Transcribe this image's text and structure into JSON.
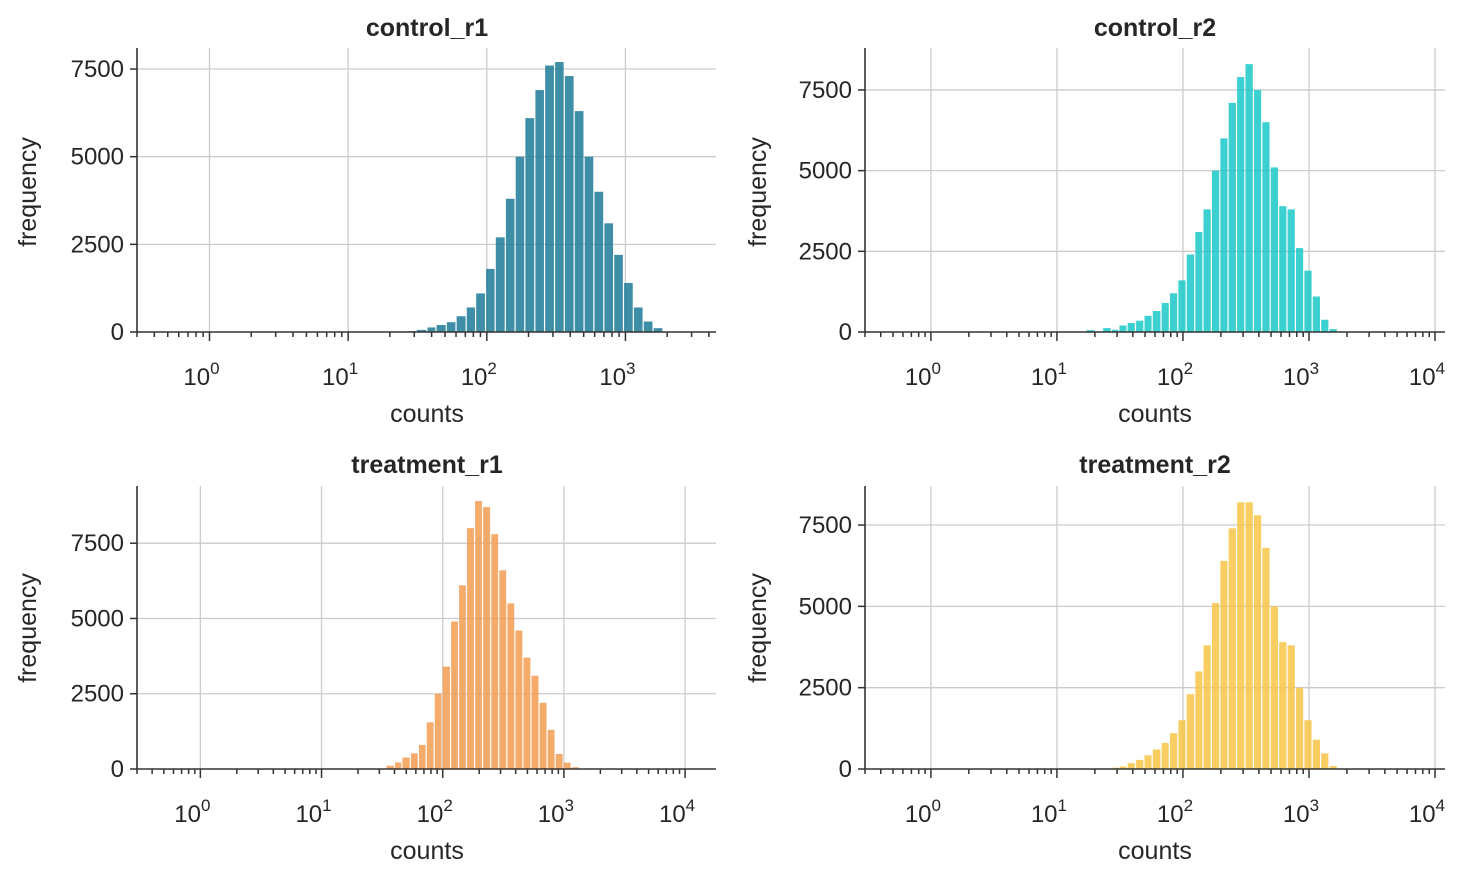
{
  "chart_data": [
    {
      "type": "bar",
      "title": "control_r1",
      "xlabel": "counts",
      "ylabel": "frequency",
      "xscale": "log",
      "xlim": [
        0.3,
        4500
      ],
      "ylim": [
        0,
        8100
      ],
      "grid": true,
      "color": "#1c7a98",
      "xtick_labels": [
        "10^0",
        "10^1",
        "10^2",
        "10^3"
      ],
      "ytick_labels": [
        "0",
        "2500",
        "5000",
        "7500"
      ],
      "yticks": [
        0,
        2500,
        5000,
        7500
      ],
      "bins": [
        [
          27,
          31,
          25
        ],
        [
          31,
          37,
          60
        ],
        [
          37,
          43,
          130
        ],
        [
          43,
          51,
          200
        ],
        [
          51,
          60,
          280
        ],
        [
          60,
          71,
          450
        ],
        [
          71,
          83,
          700
        ],
        [
          83,
          98,
          1100
        ],
        [
          98,
          115,
          1800
        ],
        [
          115,
          136,
          2700
        ],
        [
          136,
          160,
          3800
        ],
        [
          160,
          188,
          5000
        ],
        [
          188,
          222,
          6100
        ],
        [
          222,
          261,
          6900
        ],
        [
          261,
          308,
          7600
        ],
        [
          308,
          362,
          7700
        ],
        [
          362,
          427,
          7300
        ],
        [
          427,
          503,
          6300
        ],
        [
          503,
          592,
          5000
        ],
        [
          592,
          698,
          4000
        ],
        [
          698,
          822,
          3100
        ],
        [
          822,
          968,
          2200
        ],
        [
          968,
          1140,
          1400
        ],
        [
          1140,
          1343,
          700
        ],
        [
          1343,
          1582,
          300
        ],
        [
          1582,
          1863,
          110
        ]
      ]
    },
    {
      "type": "bar",
      "title": "control_r2",
      "xlabel": "counts",
      "ylabel": "frequency",
      "xscale": "log",
      "xlim": [
        0.3,
        12000
      ],
      "ylim": [
        0,
        8800
      ],
      "grid": true,
      "color": "#1bc8c8",
      "xtick_labels": [
        "10^0",
        "10^1",
        "10^2",
        "10^3",
        "10^4"
      ],
      "ytick_labels": [
        "0",
        "2500",
        "5000",
        "7500"
      ],
      "yticks": [
        0,
        2500,
        5000,
        7500
      ],
      "bins": [
        [
          17,
          20,
          60
        ],
        [
          20,
          23,
          20
        ],
        [
          23,
          27,
          120
        ],
        [
          27,
          31,
          70
        ],
        [
          31,
          36,
          200
        ],
        [
          36,
          42,
          280
        ],
        [
          42,
          49,
          350
        ],
        [
          49,
          57,
          500
        ],
        [
          57,
          67,
          650
        ],
        [
          67,
          78,
          900
        ],
        [
          78,
          91,
          1200
        ],
        [
          91,
          106,
          1600
        ],
        [
          106,
          124,
          2400
        ],
        [
          124,
          144,
          3100
        ],
        [
          144,
          168,
          3800
        ],
        [
          168,
          196,
          5000
        ],
        [
          196,
          228,
          6000
        ],
        [
          228,
          266,
          7100
        ],
        [
          266,
          310,
          7900
        ],
        [
          310,
          362,
          8300
        ],
        [
          362,
          422,
          7500
        ],
        [
          422,
          492,
          6500
        ],
        [
          492,
          574,
          5100
        ],
        [
          574,
          669,
          3900
        ],
        [
          669,
          780,
          3800
        ],
        [
          780,
          909,
          2600
        ],
        [
          909,
          1060,
          1900
        ],
        [
          1060,
          1236,
          1100
        ],
        [
          1236,
          1441,
          380
        ],
        [
          1441,
          1680,
          90
        ]
      ]
    },
    {
      "type": "bar",
      "title": "treatment_r1",
      "xlabel": "counts",
      "ylabel": "frequency",
      "xscale": "log",
      "xlim": [
        0.3,
        18000
      ],
      "ylim": [
        0,
        9400
      ],
      "grid": true,
      "color": "#f39c50",
      "xtick_labels": [
        "10^0",
        "10^1",
        "10^2",
        "10^3",
        "10^4"
      ],
      "ytick_labels": [
        "0",
        "2500",
        "5000",
        "7500"
      ],
      "yticks": [
        0,
        2500,
        5000,
        7500
      ],
      "bins": [
        [
          34,
          40,
          110
        ],
        [
          40,
          46,
          220
        ],
        [
          46,
          54,
          380
        ],
        [
          54,
          63,
          520
        ],
        [
          63,
          73,
          800
        ],
        [
          73,
          85,
          1550
        ],
        [
          85,
          99,
          2500
        ],
        [
          99,
          116,
          3400
        ],
        [
          116,
          135,
          4900
        ],
        [
          135,
          157,
          6100
        ],
        [
          157,
          183,
          8000
        ],
        [
          183,
          213,
          8900
        ],
        [
          213,
          249,
          8700
        ],
        [
          249,
          290,
          7800
        ],
        [
          290,
          338,
          6600
        ],
        [
          338,
          394,
          5500
        ],
        [
          394,
          459,
          4600
        ],
        [
          459,
          535,
          3700
        ],
        [
          535,
          624,
          3100
        ],
        [
          624,
          727,
          2200
        ],
        [
          727,
          847,
          1300
        ],
        [
          847,
          987,
          500
        ],
        [
          987,
          1150,
          210
        ],
        [
          1150,
          1341,
          60
        ]
      ]
    },
    {
      "type": "bar",
      "title": "treatment_r2",
      "xlabel": "counts",
      "ylabel": "frequency",
      "xscale": "log",
      "xlim": [
        0.3,
        12000
      ],
      "ylim": [
        0,
        8700
      ],
      "grid": true,
      "color": "#f7c548",
      "xtick_labels": [
        "10^0",
        "10^1",
        "10^2",
        "10^3",
        "10^4"
      ],
      "ytick_labels": [
        "0",
        "2500",
        "5000",
        "7500"
      ],
      "yticks": [
        0,
        2500,
        5000,
        7500
      ],
      "bins": [
        [
          27,
          31,
          40
        ],
        [
          31,
          36,
          80
        ],
        [
          36,
          42,
          180
        ],
        [
          42,
          49,
          280
        ],
        [
          49,
          57,
          420
        ],
        [
          57,
          67,
          600
        ],
        [
          67,
          78,
          800
        ],
        [
          78,
          91,
          1100
        ],
        [
          91,
          106,
          1500
        ],
        [
          106,
          124,
          2300
        ],
        [
          124,
          144,
          3000
        ],
        [
          144,
          168,
          3800
        ],
        [
          168,
          196,
          5100
        ],
        [
          196,
          228,
          6400
        ],
        [
          228,
          266,
          7400
        ],
        [
          266,
          310,
          8200
        ],
        [
          310,
          362,
          8200
        ],
        [
          362,
          422,
          7800
        ],
        [
          422,
          492,
          6800
        ],
        [
          492,
          574,
          5000
        ],
        [
          574,
          669,
          3900
        ],
        [
          669,
          780,
          3800
        ],
        [
          780,
          909,
          2500
        ],
        [
          909,
          1060,
          1500
        ],
        [
          1060,
          1236,
          900
        ],
        [
          1236,
          1441,
          480
        ],
        [
          1441,
          1680,
          90
        ]
      ]
    }
  ]
}
